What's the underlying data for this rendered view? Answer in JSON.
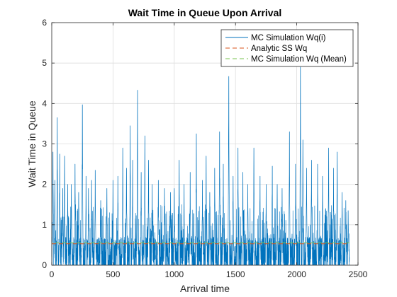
{
  "chart_data": {
    "type": "line",
    "title": "Wait Time in Queue Upon Arrival",
    "xlabel": "Arrival time",
    "ylabel": "Wait Time in Queue",
    "xlim": [
      0,
      2500
    ],
    "ylim": [
      0,
      6
    ],
    "xticks": [
      0,
      500,
      1000,
      1500,
      2000,
      2500
    ],
    "yticks": [
      0,
      1,
      2,
      3,
      4,
      5,
      6
    ],
    "grid": true,
    "legend_position": "top-right",
    "series": [
      {
        "name": "MC Simulation Wq(i)",
        "style": "solid",
        "color": "#0072BD",
        "x_end": 2430,
        "typical_max": 1.0,
        "peaks": [
          {
            "x": 10,
            "y": 2.8
          },
          {
            "x": 25,
            "y": 2.1
          },
          {
            "x": 45,
            "y": 3.65
          },
          {
            "x": 65,
            "y": 2.75
          },
          {
            "x": 90,
            "y": 1.9
          },
          {
            "x": 105,
            "y": 2.7
          },
          {
            "x": 130,
            "y": 2.0
          },
          {
            "x": 160,
            "y": 2.0
          },
          {
            "x": 190,
            "y": 2.5
          },
          {
            "x": 220,
            "y": 1.8
          },
          {
            "x": 250,
            "y": 3.97
          },
          {
            "x": 280,
            "y": 2.2
          },
          {
            "x": 300,
            "y": 1.9
          },
          {
            "x": 325,
            "y": 2.1
          },
          {
            "x": 355,
            "y": 2.35
          },
          {
            "x": 400,
            "y": 1.6
          },
          {
            "x": 450,
            "y": 1.9
          },
          {
            "x": 500,
            "y": 2.1
          },
          {
            "x": 540,
            "y": 2.2
          },
          {
            "x": 580,
            "y": 2.9
          },
          {
            "x": 610,
            "y": 2.4
          },
          {
            "x": 640,
            "y": 3.45
          },
          {
            "x": 660,
            "y": 2.6
          },
          {
            "x": 700,
            "y": 4.33
          },
          {
            "x": 730,
            "y": 2.3
          },
          {
            "x": 760,
            "y": 3.2
          },
          {
            "x": 790,
            "y": 2.6
          },
          {
            "x": 820,
            "y": 2.0
          },
          {
            "x": 870,
            "y": 2.1
          },
          {
            "x": 920,
            "y": 1.9
          },
          {
            "x": 970,
            "y": 1.8
          },
          {
            "x": 1000,
            "y": 1.9
          },
          {
            "x": 1040,
            "y": 2.6
          },
          {
            "x": 1080,
            "y": 2.0
          },
          {
            "x": 1130,
            "y": 2.3
          },
          {
            "x": 1180,
            "y": 3.25
          },
          {
            "x": 1230,
            "y": 2.1
          },
          {
            "x": 1260,
            "y": 2.7
          },
          {
            "x": 1290,
            "y": 1.8
          },
          {
            "x": 1330,
            "y": 2.4
          },
          {
            "x": 1370,
            "y": 3.3
          },
          {
            "x": 1400,
            "y": 2.5
          },
          {
            "x": 1445,
            "y": 4.67
          },
          {
            "x": 1480,
            "y": 2.2
          },
          {
            "x": 1520,
            "y": 2.9
          },
          {
            "x": 1560,
            "y": 2.3
          },
          {
            "x": 1600,
            "y": 2.0
          },
          {
            "x": 1650,
            "y": 2.9
          },
          {
            "x": 1700,
            "y": 2.2
          },
          {
            "x": 1750,
            "y": 2.0
          },
          {
            "x": 1800,
            "y": 2.45
          },
          {
            "x": 1840,
            "y": 2.0
          },
          {
            "x": 1880,
            "y": 1.9
          },
          {
            "x": 1940,
            "y": 3.3
          },
          {
            "x": 1990,
            "y": 2.5
          },
          {
            "x": 2030,
            "y": 4.9
          },
          {
            "x": 2050,
            "y": 3.1
          },
          {
            "x": 2080,
            "y": 2.4
          },
          {
            "x": 2120,
            "y": 2.6
          },
          {
            "x": 2170,
            "y": 2.5
          },
          {
            "x": 2210,
            "y": 2.2
          },
          {
            "x": 2260,
            "y": 2.9
          },
          {
            "x": 2300,
            "y": 2.4
          },
          {
            "x": 2330,
            "y": 2.8
          },
          {
            "x": 2370,
            "y": 1.8
          },
          {
            "x": 2400,
            "y": 1.6
          },
          {
            "x": 2420,
            "y": 1.35
          }
        ]
      },
      {
        "name": "Analytic SS Wq",
        "style": "dashed",
        "color": "#D95319",
        "x": [
          0,
          2430
        ],
        "y": [
          0.53,
          0.53
        ]
      },
      {
        "name": "MC Simulation Wq (Mean)",
        "style": "dashed",
        "color": "#77C34F",
        "x": [
          0,
          2430
        ],
        "y": [
          0.55,
          0.55
        ]
      }
    ]
  }
}
